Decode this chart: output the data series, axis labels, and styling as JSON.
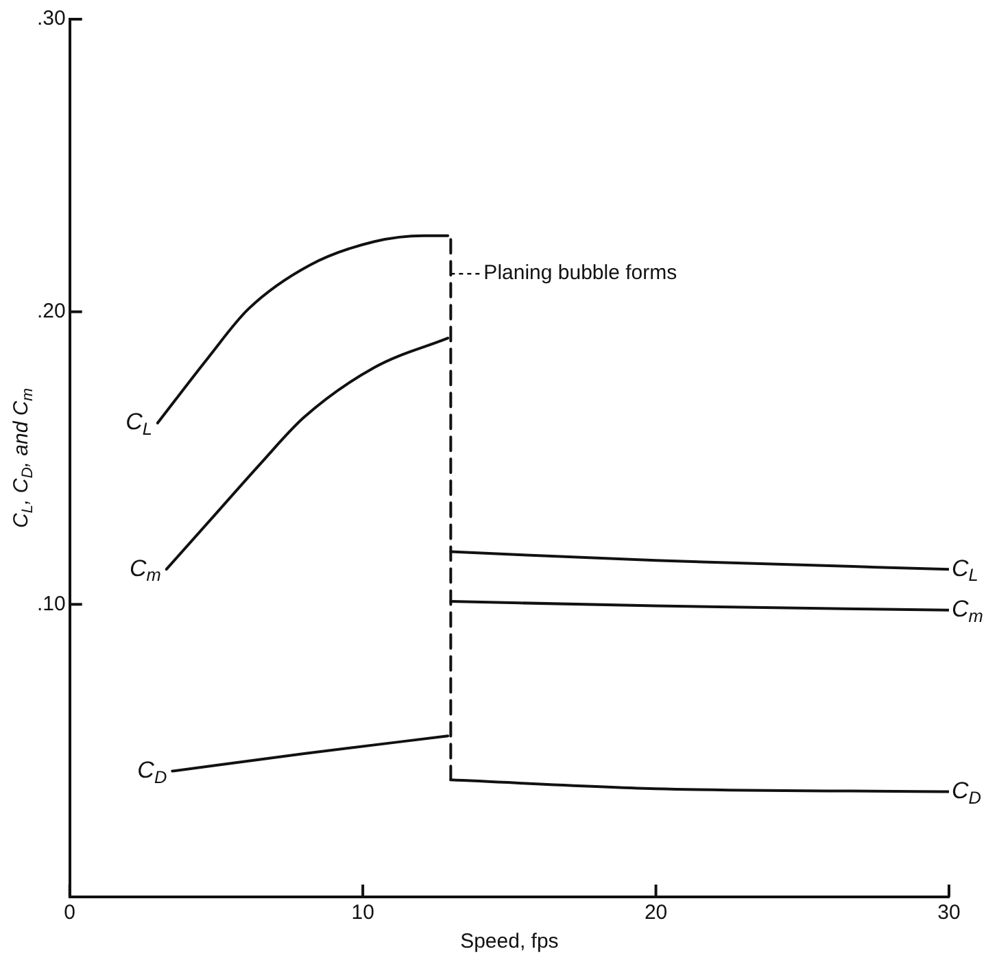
{
  "chart_data": {
    "type": "line",
    "xlabel": "Speed, fps",
    "ylabel": "C$_{L}$, C$_{D}$, and C$_{m}$",
    "xlim": [
      0,
      30
    ],
    "xticks": [
      0,
      10,
      20,
      30
    ],
    "ylim": [
      0,
      0.3
    ],
    "yticks": [
      {
        "value": 0.1,
        "label": ".10"
      },
      {
        "value": 0.2,
        "label": ".20"
      },
      {
        "value": 0.3,
        "label": ".30"
      }
    ],
    "grid": false,
    "legend": false,
    "line_style": "solid",
    "marker": "none",
    "series": [
      {
        "name": "C$_{L}$",
        "color": "#111111",
        "x": [
          3.0,
          4.7,
          6.1,
          8.2,
          10.4,
          12.1,
          12.9
        ],
        "values": [
          0.162,
          0.184,
          0.201,
          0.216,
          0.224,
          0.226,
          0.226
        ]
      },
      {
        "name": "C$_{m}$",
        "color": "#111111",
        "x": [
          3.3,
          4.9,
          6.5,
          8.0,
          10.4,
          12.9
        ],
        "values": [
          0.112,
          0.13,
          0.148,
          0.164,
          0.181,
          0.191
        ]
      },
      {
        "name": "C$_{D}$",
        "color": "#111111",
        "x": [
          3.5,
          8.0,
          12.9
        ],
        "values": [
          0.043,
          0.049,
          0.055
        ]
      },
      {
        "name": "C$_{L}$",
        "color": "#111111",
        "x": [
          13.0,
          20.0,
          30.0
        ],
        "values": [
          0.118,
          0.115,
          0.112
        ]
      },
      {
        "name": "C$_{m}$",
        "color": "#111111",
        "x": [
          13.0,
          20.0,
          30.0
        ],
        "values": [
          0.101,
          0.0995,
          0.098
        ]
      },
      {
        "name": "C$_{D}$",
        "color": "#111111",
        "x": [
          13.0,
          20.0,
          30.0
        ],
        "values": [
          0.04,
          0.037,
          0.036
        ]
      },
      {
        "color": "#111111",
        "line_style": "dashed",
        "x": [
          13.0,
          13.0
        ],
        "values": [
          0.04,
          0.226
        ]
      }
    ],
    "annotations": [
      {
        "text": "Planing bubble forms",
        "x": 13.0,
        "y": 0.213
      }
    ]
  }
}
